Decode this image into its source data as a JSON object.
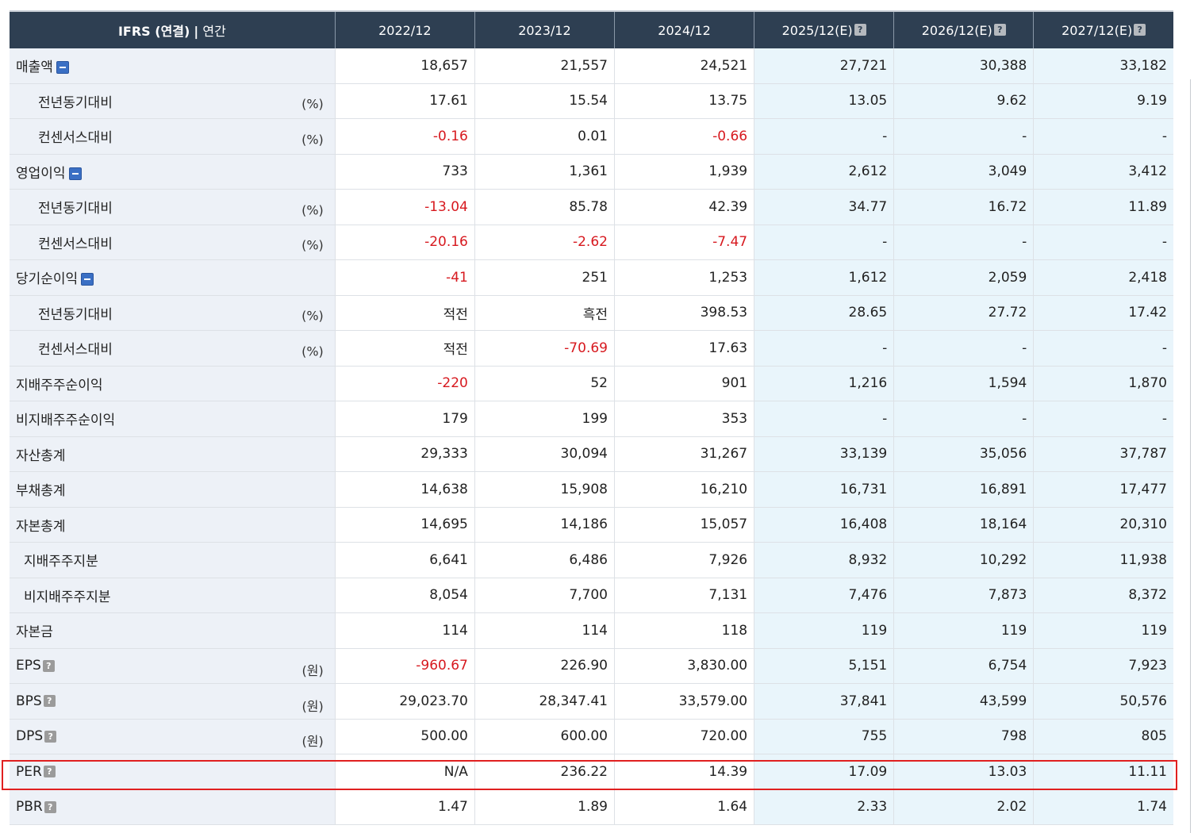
{
  "header": {
    "label_bold": "IFRS (연결)",
    "label_sep": "|",
    "label_rest": "연간",
    "columns": [
      {
        "label": "2022/12",
        "help": ""
      },
      {
        "label": "2023/12",
        "help": ""
      },
      {
        "label": "2024/12",
        "help": ""
      },
      {
        "label": "2025/12(E)",
        "help": "?"
      },
      {
        "label": "2026/12(E)",
        "help": "?"
      },
      {
        "label": "2027/12(E)",
        "help": "?"
      }
    ]
  },
  "rows": [
    {
      "label": "매출액",
      "unit": "",
      "indent": 0,
      "icon": "minus",
      "values": [
        "18,657",
        "21,557",
        "24,521",
        "27,721",
        "30,388",
        "33,182"
      ],
      "neg": [
        false,
        false,
        false,
        false,
        false,
        false
      ]
    },
    {
      "label": "전년동기대비",
      "unit": "(%)",
      "indent": 1,
      "icon": "",
      "values": [
        "17.61",
        "15.54",
        "13.75",
        "13.05",
        "9.62",
        "9.19"
      ],
      "neg": [
        false,
        false,
        false,
        false,
        false,
        false
      ]
    },
    {
      "label": "컨센서스대비",
      "unit": "(%)",
      "indent": 1,
      "icon": "",
      "values": [
        "-0.16",
        "0.01",
        "-0.66",
        "-",
        "-",
        "-"
      ],
      "neg": [
        true,
        false,
        true,
        false,
        false,
        false
      ]
    },
    {
      "label": "영업이익",
      "unit": "",
      "indent": 0,
      "icon": "minus",
      "values": [
        "733",
        "1,361",
        "1,939",
        "2,612",
        "3,049",
        "3,412"
      ],
      "neg": [
        false,
        false,
        false,
        false,
        false,
        false
      ]
    },
    {
      "label": "전년동기대비",
      "unit": "(%)",
      "indent": 1,
      "icon": "",
      "values": [
        "-13.04",
        "85.78",
        "42.39",
        "34.77",
        "16.72",
        "11.89"
      ],
      "neg": [
        true,
        false,
        false,
        false,
        false,
        false
      ]
    },
    {
      "label": "컨센서스대비",
      "unit": "(%)",
      "indent": 1,
      "icon": "",
      "values": [
        "-20.16",
        "-2.62",
        "-7.47",
        "-",
        "-",
        "-"
      ],
      "neg": [
        true,
        true,
        true,
        false,
        false,
        false
      ]
    },
    {
      "label": "당기순이익",
      "unit": "",
      "indent": 0,
      "icon": "minus",
      "values": [
        "-41",
        "251",
        "1,253",
        "1,612",
        "2,059",
        "2,418"
      ],
      "neg": [
        true,
        false,
        false,
        false,
        false,
        false
      ]
    },
    {
      "label": "전년동기대비",
      "unit": "(%)",
      "indent": 1,
      "icon": "",
      "values": [
        "적전",
        "흑전",
        "398.53",
        "28.65",
        "27.72",
        "17.42"
      ],
      "neg": [
        false,
        false,
        false,
        false,
        false,
        false
      ]
    },
    {
      "label": "컨센서스대비",
      "unit": "(%)",
      "indent": 1,
      "icon": "",
      "values": [
        "적전",
        "-70.69",
        "17.63",
        "-",
        "-",
        "-"
      ],
      "neg": [
        false,
        true,
        false,
        false,
        false,
        false
      ]
    },
    {
      "label": "지배주주순이익",
      "unit": "",
      "indent": 0,
      "icon": "",
      "values": [
        "-220",
        "52",
        "901",
        "1,216",
        "1,594",
        "1,870"
      ],
      "neg": [
        true,
        false,
        false,
        false,
        false,
        false
      ]
    },
    {
      "label": "비지배주주순이익",
      "unit": "",
      "indent": 0,
      "icon": "",
      "values": [
        "179",
        "199",
        "353",
        "-",
        "-",
        "-"
      ],
      "neg": [
        false,
        false,
        false,
        false,
        false,
        false
      ]
    },
    {
      "label": "자산총계",
      "unit": "",
      "indent": 0,
      "icon": "",
      "values": [
        "29,333",
        "30,094",
        "31,267",
        "33,139",
        "35,056",
        "37,787"
      ],
      "neg": [
        false,
        false,
        false,
        false,
        false,
        false
      ]
    },
    {
      "label": "부채총계",
      "unit": "",
      "indent": 0,
      "icon": "",
      "values": [
        "14,638",
        "15,908",
        "16,210",
        "16,731",
        "16,891",
        "17,477"
      ],
      "neg": [
        false,
        false,
        false,
        false,
        false,
        false
      ]
    },
    {
      "label": "자본총계",
      "unit": "",
      "indent": 0,
      "icon": "",
      "values": [
        "14,695",
        "14,186",
        "15,057",
        "16,408",
        "18,164",
        "20,310"
      ],
      "neg": [
        false,
        false,
        false,
        false,
        false,
        false
      ]
    },
    {
      "label": "지배주주지분",
      "unit": "",
      "indent": 2,
      "icon": "",
      "values": [
        "6,641",
        "6,486",
        "7,926",
        "8,932",
        "10,292",
        "11,938"
      ],
      "neg": [
        false,
        false,
        false,
        false,
        false,
        false
      ]
    },
    {
      "label": "비지배주주지분",
      "unit": "",
      "indent": 2,
      "icon": "",
      "values": [
        "8,054",
        "7,700",
        "7,131",
        "7,476",
        "7,873",
        "8,372"
      ],
      "neg": [
        false,
        false,
        false,
        false,
        false,
        false
      ]
    },
    {
      "label": "자본금",
      "unit": "",
      "indent": 0,
      "icon": "",
      "values": [
        "114",
        "114",
        "118",
        "119",
        "119",
        "119"
      ],
      "neg": [
        false,
        false,
        false,
        false,
        false,
        false
      ]
    },
    {
      "label": "EPS",
      "unit": "(원)",
      "indent": 0,
      "icon": "help",
      "values": [
        "-960.67",
        "226.90",
        "3,830.00",
        "5,151",
        "6,754",
        "7,923"
      ],
      "neg": [
        true,
        false,
        false,
        false,
        false,
        false
      ]
    },
    {
      "label": "BPS",
      "unit": "(원)",
      "indent": 0,
      "icon": "help",
      "values": [
        "29,023.70",
        "28,347.41",
        "33,579.00",
        "37,841",
        "43,599",
        "50,576"
      ],
      "neg": [
        false,
        false,
        false,
        false,
        false,
        false
      ]
    },
    {
      "label": "DPS",
      "unit": "(원)",
      "indent": 0,
      "icon": "help",
      "values": [
        "500.00",
        "600.00",
        "720.00",
        "755",
        "798",
        "805"
      ],
      "neg": [
        false,
        false,
        false,
        false,
        false,
        false
      ]
    },
    {
      "label": "PER",
      "unit": "",
      "indent": 0,
      "icon": "help",
      "values": [
        "N/A",
        "236.22",
        "14.39",
        "17.09",
        "13.03",
        "11.11"
      ],
      "neg": [
        false,
        false,
        false,
        false,
        false,
        false
      ]
    },
    {
      "label": "PBR",
      "unit": "",
      "indent": 0,
      "icon": "help",
      "values": [
        "1.47",
        "1.89",
        "1.64",
        "2.33",
        "2.02",
        "1.74"
      ],
      "neg": [
        false,
        false,
        false,
        false,
        false,
        false
      ]
    }
  ],
  "estimate_column_start": 3,
  "colors": {
    "header_bg": "#2e3f52",
    "label_bg": "#edf1f7",
    "estimate_bg": "#e9f5fb",
    "negative_text": "#d7191f",
    "highlight_border": "#e02020"
  },
  "highlight": {
    "row_label": "PER"
  },
  "help_glyph": "?"
}
